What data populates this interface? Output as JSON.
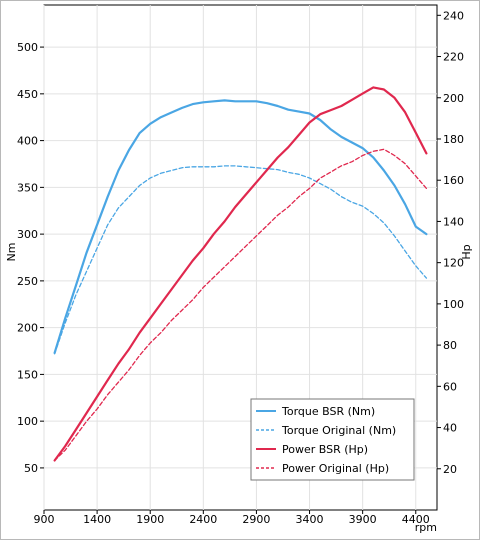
{
  "chart_data": {
    "type": "line",
    "x_unit_label": "rpm",
    "y_left_label": "Nm",
    "y_right_label": "Hp",
    "x_ticks": [
      900,
      1400,
      1900,
      2400,
      2900,
      3400,
      3900,
      4400
    ],
    "y_left_ticks": [
      50,
      100,
      150,
      200,
      250,
      300,
      350,
      400,
      450,
      500
    ],
    "y_right_ticks": [
      20,
      40,
      60,
      80,
      100,
      120,
      140,
      160,
      180,
      200,
      220,
      240
    ],
    "xlim": [
      900,
      4600
    ],
    "y_left_lim": [
      5,
      545
    ],
    "y_right_lim": [
      0,
      245
    ],
    "grid": true,
    "legend_position": "bottom-right",
    "colors": {
      "torque": "#4aa6e4",
      "power": "#e0284e"
    },
    "series": [
      {
        "name": "Torque BSR (Nm)",
        "axis": "left",
        "style": "solid",
        "color": "#4aa6e4",
        "x": [
          1000,
          1100,
          1200,
          1300,
          1400,
          1500,
          1600,
          1700,
          1800,
          1900,
          2000,
          2100,
          2200,
          2300,
          2400,
          2500,
          2600,
          2700,
          2800,
          2900,
          3000,
          3100,
          3200,
          3300,
          3400,
          3500,
          3600,
          3700,
          3800,
          3900,
          4000,
          4100,
          4200,
          4300,
          4400,
          4500
        ],
        "y": [
          173,
          210,
          245,
          280,
          310,
          340,
          368,
          390,
          408,
          418,
          425,
          430,
          435,
          439,
          441,
          442,
          443,
          442,
          442,
          442,
          440,
          437,
          433,
          431,
          429,
          422,
          412,
          404,
          398,
          392,
          382,
          368,
          352,
          332,
          308,
          300
        ]
      },
      {
        "name": "Torque Original (Nm)",
        "axis": "left",
        "style": "dashed",
        "color": "#4aa6e4",
        "x": [
          1000,
          1100,
          1200,
          1300,
          1400,
          1500,
          1600,
          1700,
          1800,
          1900,
          2000,
          2100,
          2200,
          2300,
          2400,
          2500,
          2600,
          2700,
          2800,
          2900,
          3000,
          3100,
          3200,
          3300,
          3400,
          3500,
          3600,
          3700,
          3800,
          3900,
          4000,
          4100,
          4200,
          4300,
          4400,
          4500
        ],
        "y": [
          172,
          205,
          235,
          260,
          285,
          310,
          328,
          340,
          352,
          360,
          365,
          368,
          371,
          372,
          372,
          372,
          373,
          373,
          372,
          371,
          370,
          369,
          366,
          364,
          360,
          354,
          348,
          340,
          334,
          330,
          322,
          312,
          298,
          282,
          266,
          253
        ]
      },
      {
        "name": "Power BSR (Hp)",
        "axis": "right",
        "style": "solid",
        "color": "#e0284e",
        "x": [
          1000,
          1100,
          1200,
          1300,
          1400,
          1500,
          1600,
          1700,
          1800,
          1900,
          2000,
          2100,
          2200,
          2300,
          2400,
          2500,
          2600,
          2700,
          2800,
          2900,
          3000,
          3100,
          3200,
          3300,
          3400,
          3500,
          3600,
          3700,
          3800,
          3900,
          4000,
          4100,
          4200,
          4300,
          4400,
          4500
        ],
        "y": [
          24,
          31,
          39,
          47,
          55,
          63,
          71,
          78,
          86,
          93,
          100,
          107,
          114,
          121,
          127,
          134,
          140,
          147,
          153,
          159,
          165,
          171,
          176,
          182,
          188,
          192,
          194,
          196,
          199,
          202,
          205,
          204,
          200,
          193,
          183,
          173
        ]
      },
      {
        "name": "Power Original (Hp)",
        "axis": "right",
        "style": "dashed",
        "color": "#e0284e",
        "x": [
          1000,
          1100,
          1200,
          1300,
          1400,
          1500,
          1600,
          1700,
          1800,
          1900,
          2000,
          2100,
          2200,
          2300,
          2400,
          2500,
          2600,
          2700,
          2800,
          2900,
          3000,
          3100,
          3200,
          3300,
          3400,
          3500,
          3600,
          3700,
          3800,
          3900,
          4000,
          4100,
          4200,
          4300,
          4400,
          4500
        ],
        "y": [
          24,
          29,
          36,
          43,
          49,
          56,
          62,
          68,
          75,
          81,
          86,
          92,
          97,
          102,
          108,
          113,
          118,
          123,
          128,
          133,
          138,
          143,
          147,
          152,
          156,
          161,
          164,
          167,
          169,
          172,
          174,
          175,
          172,
          168,
          162,
          156
        ]
      }
    ]
  }
}
